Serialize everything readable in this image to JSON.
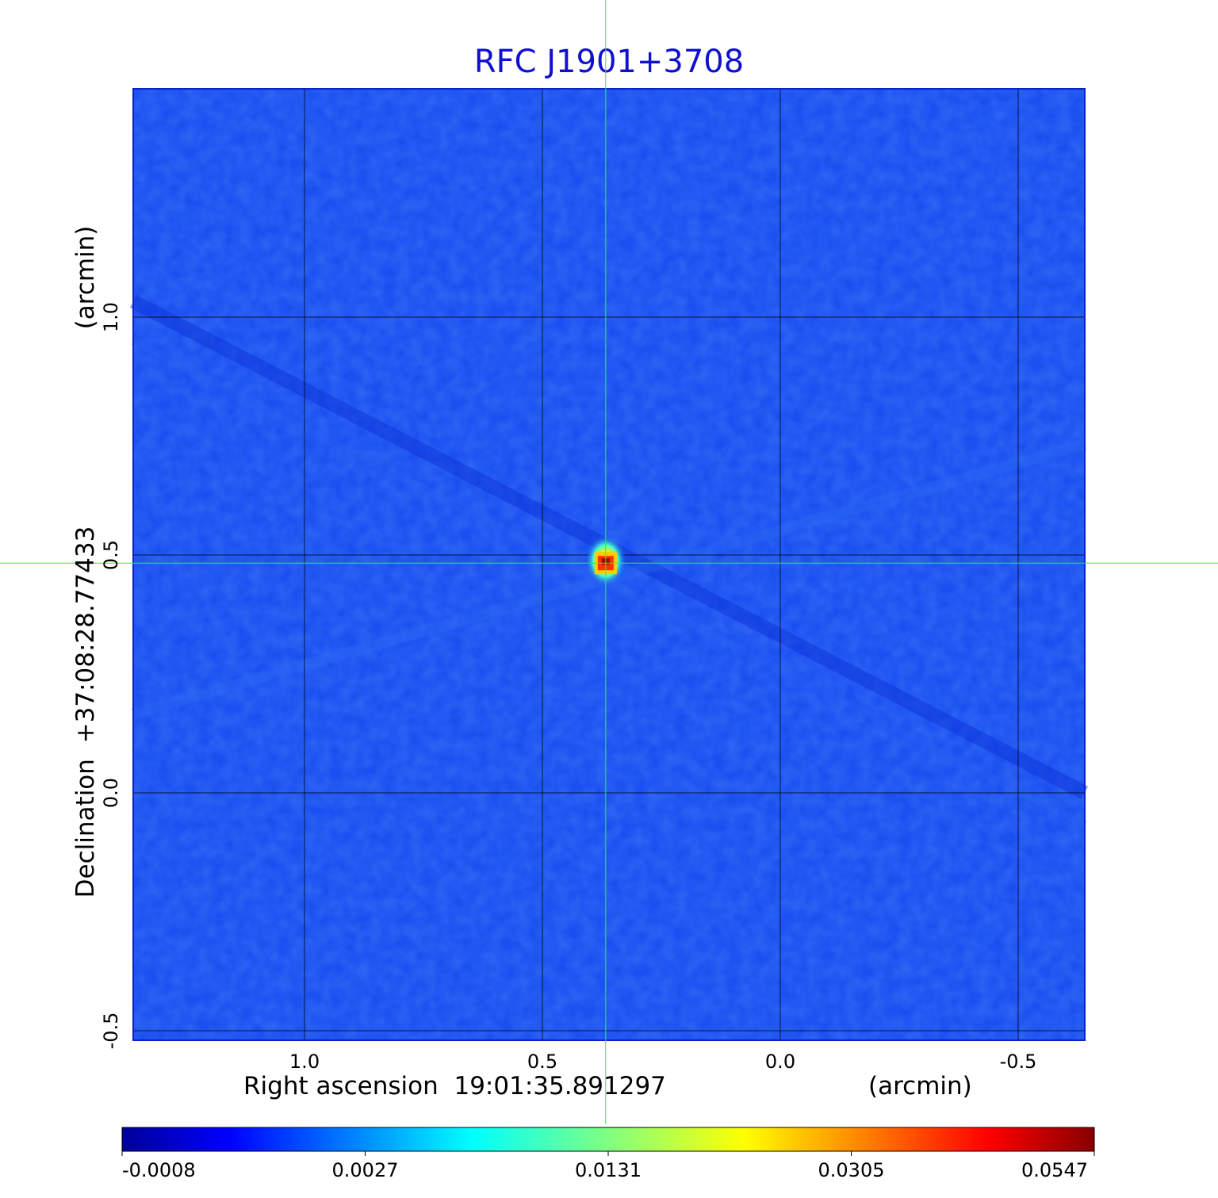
{
  "chart_data": {
    "type": "heatmap",
    "title": "RFC J1901+3708",
    "xlabel": "Right ascension  19:01:35.891297",
    "xunit": "(arcmin)",
    "ylabel": "Declination  +37:08:28.77433",
    "yunit": "(arcmin)",
    "x_ticks": [
      "1.0",
      "0.5",
      "0.0",
      "-0.5"
    ],
    "y_ticks": [
      "1.0",
      "0.5",
      "0.0",
      "-0.5"
    ],
    "x_tick_values": [
      1.0,
      0.5,
      0.0,
      -0.5
    ],
    "y_tick_values": [
      1.0,
      0.5,
      0.0,
      -0.5
    ],
    "xlim": [
      1.36,
      -0.64
    ],
    "ylim": [
      -0.52,
      1.48
    ],
    "grid": true,
    "crosshair": [
      0.367,
      0.483
    ],
    "source_peak": {
      "x": 0.367,
      "y": 0.483,
      "value": 0.0547
    },
    "colorbar": {
      "ticks": [
        "-0.0008",
        "0.0027",
        "0.0131",
        "0.0305",
        "0.0547"
      ],
      "colormap": "jet"
    }
  },
  "colors": {
    "title": "#1010d0",
    "background_field": "#1a4ff0",
    "crosshair": "#33ee33",
    "grid": "#000000"
  }
}
